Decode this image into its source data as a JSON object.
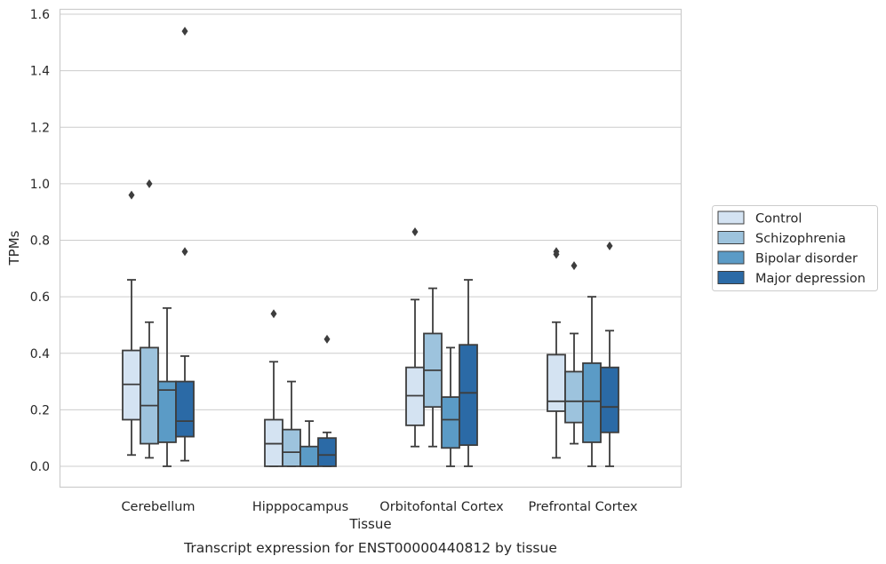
{
  "chart_data": {
    "type": "boxplot",
    "xlabel": "Tissue",
    "ylabel": "TPMs",
    "caption": "Transcript expression for ENST00000440812 by tissue",
    "ylim": [
      -0.075,
      1.62
    ],
    "yticks": [
      0.0,
      0.2,
      0.4,
      0.6,
      0.8,
      1.0,
      1.2,
      1.4,
      1.6
    ],
    "ytick_labels": [
      "0.0",
      "0.2",
      "0.4",
      "0.6",
      "0.8",
      "1.0",
      "1.2",
      "1.4",
      "1.6"
    ],
    "grid": "horizontal",
    "legend_position": "right",
    "categories": [
      "Cerebellum",
      "Hipppocampus",
      "Orbitofontal Cortex",
      "Prefrontal Cortex"
    ],
    "series": [
      {
        "name": "Control",
        "color": "#d4e3f2",
        "boxes": [
          {
            "whislo": 0.04,
            "q1": 0.165,
            "med": 0.29,
            "q3": 0.41,
            "whishi": 0.66,
            "fliers": [
              0.96
            ]
          },
          {
            "whislo": 0.0,
            "q1": 0.0,
            "med": 0.08,
            "q3": 0.165,
            "whishi": 0.37,
            "fliers": [
              0.54
            ]
          },
          {
            "whislo": 0.07,
            "q1": 0.145,
            "med": 0.25,
            "q3": 0.35,
            "whishi": 0.59,
            "fliers": [
              0.83
            ]
          },
          {
            "whislo": 0.03,
            "q1": 0.195,
            "med": 0.23,
            "q3": 0.395,
            "whishi": 0.51,
            "fliers": [
              0.75,
              0.76
            ]
          }
        ]
      },
      {
        "name": "Schizophrenia",
        "color": "#9dc3dd",
        "boxes": [
          {
            "whislo": 0.03,
            "q1": 0.08,
            "med": 0.215,
            "q3": 0.42,
            "whishi": 0.51,
            "fliers": [
              1.0
            ]
          },
          {
            "whislo": 0.0,
            "q1": 0.0,
            "med": 0.05,
            "q3": 0.13,
            "whishi": 0.3,
            "fliers": []
          },
          {
            "whislo": 0.07,
            "q1": 0.21,
            "med": 0.34,
            "q3": 0.47,
            "whishi": 0.63,
            "fliers": []
          },
          {
            "whislo": 0.08,
            "q1": 0.155,
            "med": 0.23,
            "q3": 0.335,
            "whishi": 0.47,
            "fliers": [
              0.71
            ]
          }
        ]
      },
      {
        "name": "Bipolar disorder",
        "color": "#5b9bc6",
        "boxes": [
          {
            "whislo": 0.0,
            "q1": 0.085,
            "med": 0.27,
            "q3": 0.3,
            "whishi": 0.56,
            "fliers": []
          },
          {
            "whislo": 0.0,
            "q1": 0.0,
            "med": 0.0,
            "q3": 0.07,
            "whishi": 0.16,
            "fliers": []
          },
          {
            "whislo": 0.0,
            "q1": 0.065,
            "med": 0.165,
            "q3": 0.245,
            "whishi": 0.42,
            "fliers": []
          },
          {
            "whislo": 0.0,
            "q1": 0.085,
            "med": 0.23,
            "q3": 0.365,
            "whishi": 0.6,
            "fliers": []
          }
        ]
      },
      {
        "name": "Major depression",
        "color": "#2b6aa6",
        "boxes": [
          {
            "whislo": 0.02,
            "q1": 0.105,
            "med": 0.16,
            "q3": 0.3,
            "whishi": 0.39,
            "fliers": [
              0.76,
              1.54
            ]
          },
          {
            "whislo": 0.0,
            "q1": 0.0,
            "med": 0.04,
            "q3": 0.1,
            "whishi": 0.12,
            "fliers": [
              0.45
            ]
          },
          {
            "whislo": 0.0,
            "q1": 0.075,
            "med": 0.26,
            "q3": 0.43,
            "whishi": 0.66,
            "fliers": []
          },
          {
            "whislo": 0.0,
            "q1": 0.12,
            "med": 0.21,
            "q3": 0.35,
            "whishi": 0.48,
            "fliers": [
              0.78
            ]
          }
        ]
      }
    ]
  }
}
